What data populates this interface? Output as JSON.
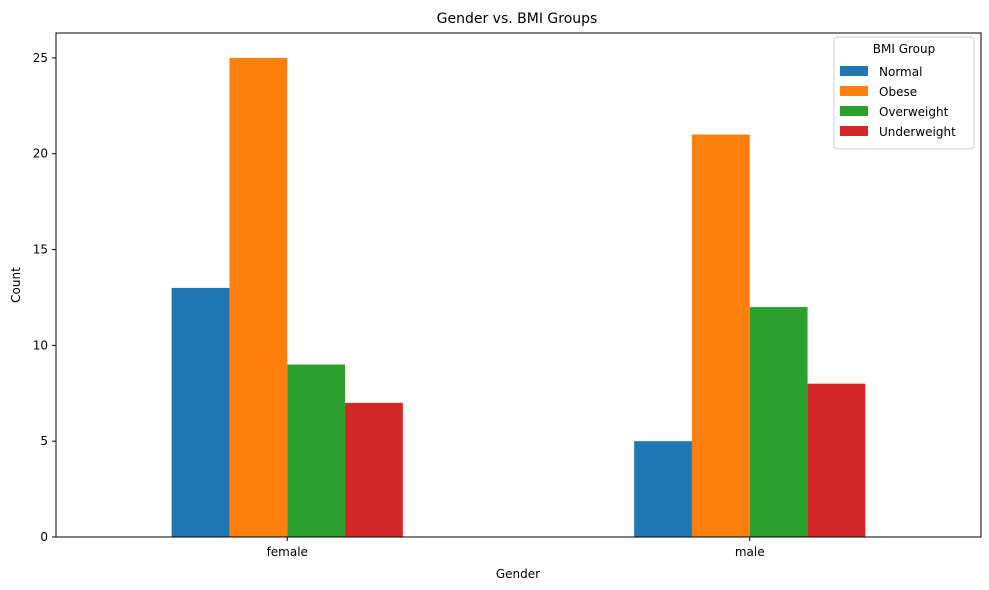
{
  "chart_data": {
    "type": "bar",
    "title": "Gender vs. BMI Groups",
    "xlabel": "Gender",
    "ylabel": "Count",
    "categories": [
      "female",
      "male"
    ],
    "ylim": [
      0,
      26.3
    ],
    "yticks": [
      0,
      5,
      10,
      15,
      20,
      25
    ],
    "grid": false,
    "legend": {
      "title": "BMI Group",
      "placement": "top-right"
    },
    "series": [
      {
        "name": "Normal",
        "color": "#1f77b4",
        "values": [
          13,
          5
        ]
      },
      {
        "name": "Obese",
        "color": "#ff7f0e",
        "values": [
          25,
          21
        ]
      },
      {
        "name": "Overweight",
        "color": "#2ca02c",
        "values": [
          9,
          12
        ]
      },
      {
        "name": "Underweight",
        "color": "#d62728",
        "values": [
          7,
          8
        ]
      }
    ]
  }
}
